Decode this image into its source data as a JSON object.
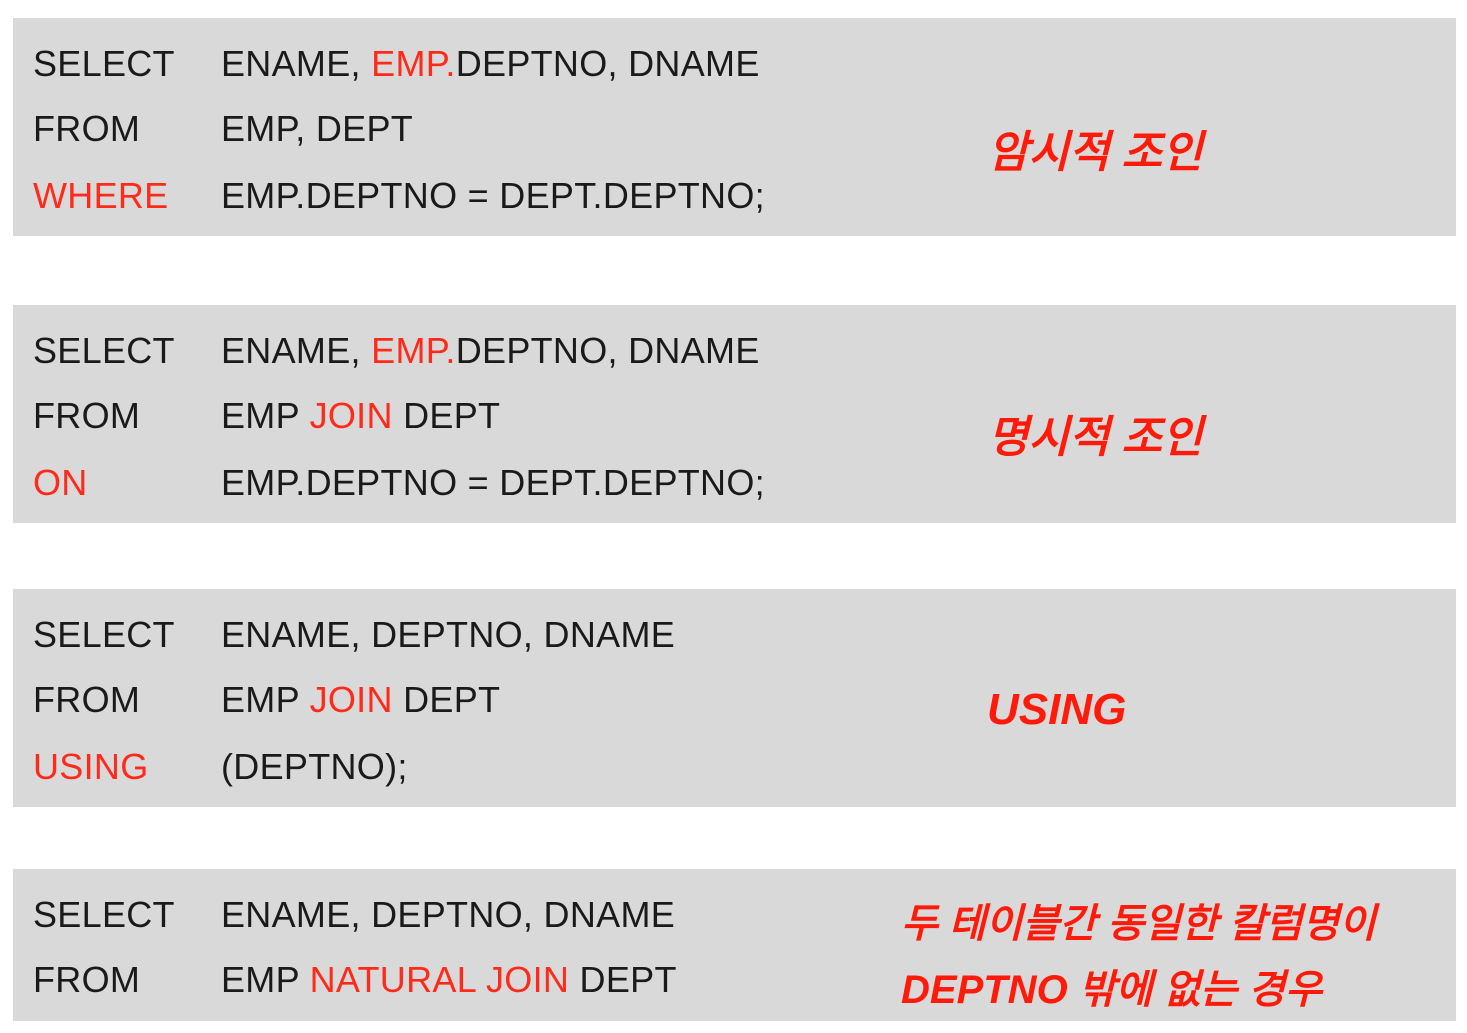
{
  "blocks": [
    {
      "id": "implicit",
      "lines": [
        {
          "kw": "SELECT",
          "a": "ENAME, ",
          "b": "EMP.",
          "c": "DEPTNO, DNAME"
        },
        {
          "kw": "FROM",
          "a": "EMP, DEPT"
        },
        {
          "kw": "WHERE",
          "a": "EMP.DEPTNO = DEPT.DEPTNO;"
        }
      ],
      "label": "암시적 조인"
    },
    {
      "id": "explicit",
      "lines": [
        {
          "kw": "SELECT",
          "a": "ENAME, ",
          "b": "EMP.",
          "c": "DEPTNO, DNAME"
        },
        {
          "kw": "FROM",
          "a": "EMP ",
          "b": "JOIN",
          "c": " DEPT"
        },
        {
          "kw": "ON",
          "a": "EMP.DEPTNO = DEPT.DEPTNO;"
        }
      ],
      "label": "명시적 조인"
    },
    {
      "id": "using",
      "lines": [
        {
          "kw": "SELECT",
          "a": "ENAME, DEPTNO, DNAME"
        },
        {
          "kw": "FROM",
          "a": "EMP ",
          "b": "JOIN",
          "c": " DEPT"
        },
        {
          "kw": "USING",
          "a": "(DEPTNO);"
        }
      ],
      "label": "USING"
    },
    {
      "id": "natural",
      "lines": [
        {
          "kw": "SELECT",
          "a": "ENAME, DEPTNO, DNAME"
        },
        {
          "kw": "FROM",
          "a": "EMP ",
          "b": "NATURAL JOIN",
          "c": " DEPT"
        }
      ],
      "label_lines": [
        "두 테이블간 동일한 칼럼명이",
        "DEPTNO 밖에 없는 경우"
      ]
    }
  ],
  "colors": {
    "block_bg": "#d9d9d9",
    "text": "#1a1a1a",
    "highlight": "#ff2a1a",
    "label": "#ff1a0a"
  }
}
